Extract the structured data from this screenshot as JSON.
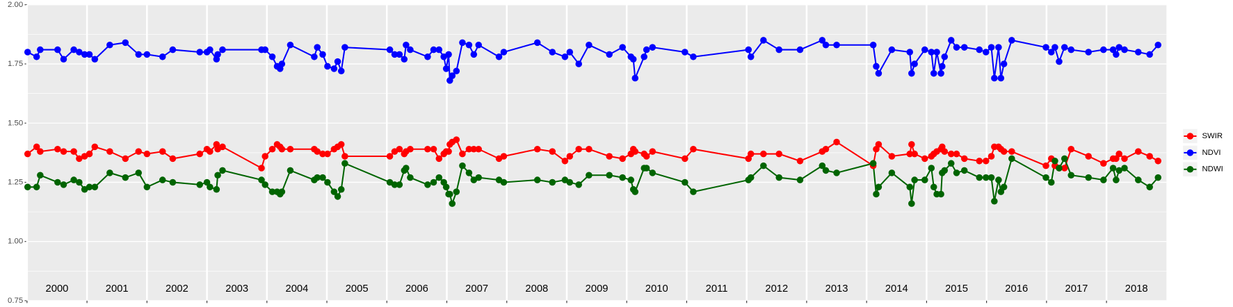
{
  "chart_data": {
    "type": "line",
    "x": [
      2000.01,
      2000.16,
      2000.22,
      2000.51,
      2000.61,
      2000.78,
      2000.87,
      2000.96,
      2001.04,
      2001.13,
      2001.38,
      2001.64,
      2001.86,
      2002.0,
      2002.26,
      2002.43,
      2002.88,
      2003.0,
      2003.05,
      2003.16,
      2003.18,
      2003.26,
      2003.91,
      2003.97,
      2004.09,
      2004.17,
      2004.22,
      2004.25,
      2004.39,
      2004.79,
      2004.84,
      2004.93,
      2005.01,
      2005.12,
      2005.18,
      2005.24,
      2005.3,
      2006.05,
      2006.13,
      2006.21,
      2006.29,
      2006.32,
      2006.39,
      2006.68,
      2006.78,
      2006.87,
      2006.95,
      2006.99,
      2007.03,
      2007.05,
      2007.09,
      2007.16,
      2007.26,
      2007.37,
      2007.45,
      2007.53,
      2007.87,
      2007.95,
      2008.51,
      2008.76,
      2008.97,
      2009.05,
      2009.2,
      2009.37,
      2009.71,
      2009.93,
      2010.07,
      2010.11,
      2010.14,
      2010.29,
      2010.33,
      2010.43,
      2010.97,
      2011.11,
      2012.03,
      2012.07,
      2012.28,
      2012.54,
      2012.89,
      2013.26,
      2013.32,
      2013.5,
      2014.11,
      2014.16,
      2014.2,
      2014.42,
      2014.72,
      2014.75,
      2014.8,
      2014.97,
      2015.08,
      2015.12,
      2015.17,
      2015.24,
      2015.26,
      2015.3,
      2015.41,
      2015.5,
      2015.63,
      2015.88,
      2015.99,
      2016.08,
      2016.13,
      2016.2,
      2016.24,
      2016.29,
      2016.42,
      2016.99,
      2017.08,
      2017.14,
      2017.21,
      2017.3,
      2017.41,
      2017.7,
      2017.95,
      2018.11,
      2018.16,
      2018.21,
      2018.3,
      2018.53,
      2018.72,
      2018.86
    ],
    "series": [
      {
        "name": "SWIR",
        "color": "#ff0000",
        "values": [
          1.37,
          1.4,
          1.38,
          1.39,
          1.38,
          1.38,
          1.35,
          1.36,
          1.37,
          1.4,
          1.38,
          1.35,
          1.38,
          1.37,
          1.38,
          1.35,
          1.37,
          1.39,
          1.38,
          1.41,
          1.39,
          1.4,
          1.31,
          1.36,
          1.39,
          1.41,
          1.4,
          1.39,
          1.39,
          1.39,
          1.38,
          1.37,
          1.37,
          1.39,
          1.4,
          1.41,
          1.36,
          1.36,
          1.38,
          1.39,
          1.37,
          1.38,
          1.39,
          1.39,
          1.39,
          1.35,
          1.37,
          1.38,
          1.38,
          1.41,
          1.42,
          1.43,
          1.37,
          1.39,
          1.39,
          1.39,
          1.35,
          1.36,
          1.39,
          1.38,
          1.34,
          1.36,
          1.39,
          1.39,
          1.36,
          1.35,
          1.37,
          1.39,
          1.38,
          1.37,
          1.36,
          1.38,
          1.35,
          1.39,
          1.35,
          1.37,
          1.37,
          1.37,
          1.34,
          1.38,
          1.39,
          1.42,
          1.32,
          1.39,
          1.41,
          1.36,
          1.37,
          1.41,
          1.37,
          1.35,
          1.36,
          1.37,
          1.38,
          1.39,
          1.4,
          1.38,
          1.37,
          1.37,
          1.35,
          1.34,
          1.34,
          1.36,
          1.4,
          1.4,
          1.39,
          1.38,
          1.38,
          1.32,
          1.35,
          1.32,
          1.31,
          1.31,
          1.39,
          1.36,
          1.33,
          1.35,
          1.35,
          1.37,
          1.35,
          1.38,
          1.36,
          1.34
        ]
      },
      {
        "name": "NDVI",
        "color": "#0000ff",
        "values": [
          1.8,
          1.78,
          1.81,
          1.81,
          1.77,
          1.81,
          1.8,
          1.79,
          1.79,
          1.77,
          1.83,
          1.84,
          1.79,
          1.79,
          1.78,
          1.81,
          1.8,
          1.8,
          1.81,
          1.77,
          1.79,
          1.81,
          1.81,
          1.81,
          1.78,
          1.74,
          1.73,
          1.75,
          1.83,
          1.78,
          1.82,
          1.79,
          1.74,
          1.73,
          1.76,
          1.72,
          1.82,
          1.81,
          1.79,
          1.79,
          1.77,
          1.83,
          1.81,
          1.78,
          1.81,
          1.81,
          1.78,
          1.73,
          1.79,
          1.68,
          1.7,
          1.72,
          1.84,
          1.83,
          1.79,
          1.83,
          1.78,
          1.8,
          1.84,
          1.8,
          1.78,
          1.8,
          1.75,
          1.83,
          1.79,
          1.82,
          1.78,
          1.77,
          1.69,
          1.78,
          1.81,
          1.82,
          1.8,
          1.78,
          1.81,
          1.78,
          1.85,
          1.81,
          1.81,
          1.85,
          1.83,
          1.83,
          1.83,
          1.74,
          1.71,
          1.81,
          1.8,
          1.71,
          1.75,
          1.81,
          1.8,
          1.71,
          1.8,
          1.71,
          1.74,
          1.78,
          1.85,
          1.82,
          1.82,
          1.81,
          1.8,
          1.82,
          1.69,
          1.82,
          1.69,
          1.75,
          1.85,
          1.82,
          1.8,
          1.82,
          1.76,
          1.82,
          1.81,
          1.8,
          1.81,
          1.81,
          1.79,
          1.82,
          1.81,
          1.8,
          1.79,
          1.83
        ]
      },
      {
        "name": "NDWI",
        "color": "#006400",
        "values": [
          1.23,
          1.23,
          1.28,
          1.25,
          1.24,
          1.26,
          1.25,
          1.22,
          1.23,
          1.23,
          1.29,
          1.27,
          1.29,
          1.23,
          1.26,
          1.25,
          1.24,
          1.25,
          1.23,
          1.22,
          1.28,
          1.3,
          1.26,
          1.24,
          1.21,
          1.21,
          1.2,
          1.21,
          1.3,
          1.26,
          1.27,
          1.27,
          1.25,
          1.21,
          1.19,
          1.22,
          1.33,
          1.25,
          1.24,
          1.24,
          1.3,
          1.31,
          1.27,
          1.24,
          1.25,
          1.27,
          1.25,
          1.23,
          1.2,
          1.2,
          1.16,
          1.21,
          1.32,
          1.29,
          1.26,
          1.27,
          1.26,
          1.25,
          1.26,
          1.25,
          1.26,
          1.25,
          1.24,
          1.28,
          1.28,
          1.27,
          1.26,
          1.22,
          1.21,
          1.31,
          1.31,
          1.29,
          1.25,
          1.21,
          1.26,
          1.27,
          1.32,
          1.27,
          1.26,
          1.32,
          1.3,
          1.29,
          1.33,
          1.2,
          1.23,
          1.29,
          1.23,
          1.16,
          1.26,
          1.26,
          1.31,
          1.23,
          1.2,
          1.2,
          1.29,
          1.3,
          1.33,
          1.29,
          1.3,
          1.27,
          1.27,
          1.27,
          1.17,
          1.26,
          1.21,
          1.23,
          1.35,
          1.27,
          1.25,
          1.34,
          1.31,
          1.35,
          1.28,
          1.27,
          1.26,
          1.31,
          1.26,
          1.3,
          1.31,
          1.26,
          1.23,
          1.27
        ]
      }
    ],
    "xlim": [
      2000,
      2019
    ],
    "xticks": [
      2000,
      2001,
      2002,
      2003,
      2004,
      2005,
      2006,
      2007,
      2008,
      2009,
      2010,
      2011,
      2012,
      2013,
      2014,
      2015,
      2016,
      2017,
      2018
    ],
    "ylim": [
      0.75,
      2.0
    ],
    "yticks": [
      {
        "value": 0.75,
        "label": "0.75"
      },
      {
        "value": 1.0,
        "label": "1.00"
      },
      {
        "value": 1.25,
        "label": "1.25"
      },
      {
        "value": 1.5,
        "label": "1.50"
      },
      {
        "value": 1.75,
        "label": "1.75"
      },
      {
        "value": 2.0,
        "label": "2.00"
      }
    ],
    "grid": true,
    "legend": "right"
  }
}
